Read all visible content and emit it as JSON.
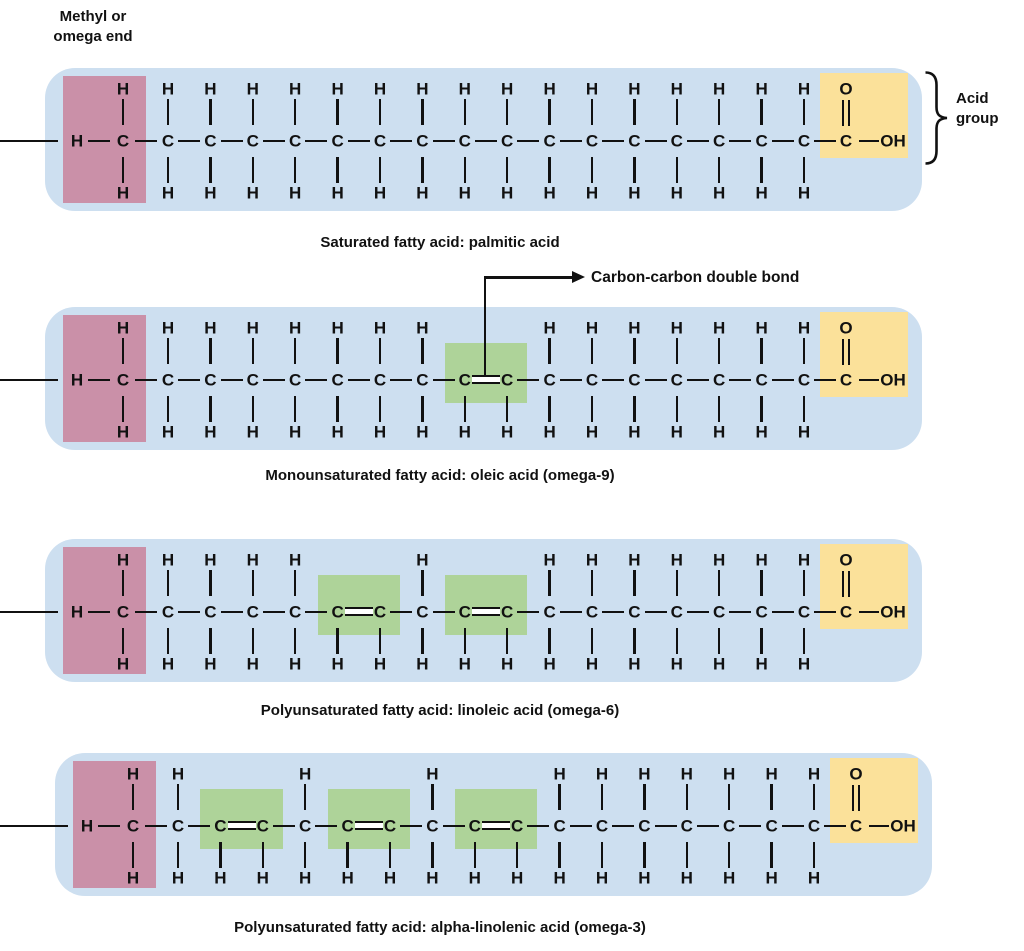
{
  "labels": {
    "methyl_line1": "Methyl or",
    "methyl_line2": "omega end",
    "acid_line1": "Acid",
    "acid_line2": "group",
    "double_bond_callout": "Carbon-carbon double bond"
  },
  "atoms": {
    "carbon": "C",
    "hydrogen": "H",
    "oxygen": "O",
    "hydroxyl": "OH"
  },
  "colors": {
    "ink": "#111111",
    "chain_bg": "#cdDFF0",
    "methyl_highlight": "#ca90a8",
    "acid_highlight": "#fbe19a",
    "double_bond_highlight": "#aed399"
  },
  "panels": [
    {
      "name": "saturated",
      "caption": "Saturated fatty acid: palmitic acid",
      "carbon_count": 18,
      "double_bond_positions": [],
      "has_acid_group_bracket": true
    },
    {
      "name": "monounsaturated",
      "caption": "Monounsaturated fatty acid: oleic acid (omega-9)",
      "carbon_count": 18,
      "double_bond_positions": [
        [
          9,
          10
        ]
      ],
      "has_double_bond_callout": true
    },
    {
      "name": "polyunsaturated-omega-6",
      "caption": "Polyunsaturated fatty acid: linoleic acid (omega-6)",
      "carbon_count": 18,
      "double_bond_positions": [
        [
          6,
          7
        ],
        [
          9,
          10
        ]
      ]
    },
    {
      "name": "polyunsaturated-omega-3",
      "caption": "Polyunsaturated fatty acid: alpha-linolenic acid (omega-3)",
      "carbon_count": 18,
      "double_bond_positions": [
        [
          3,
          4
        ],
        [
          6,
          7
        ],
        [
          9,
          10
        ]
      ]
    }
  ]
}
